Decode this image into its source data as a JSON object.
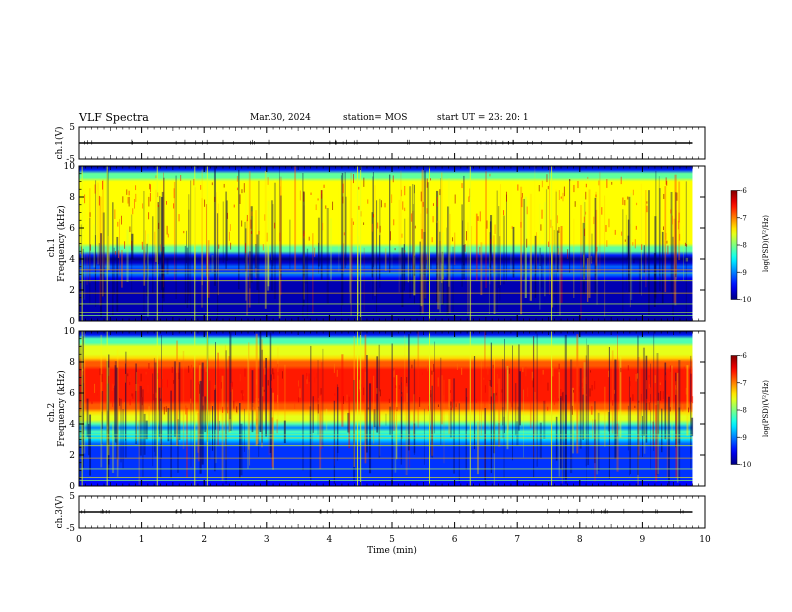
{
  "header": {
    "title": "VLF Spectra",
    "date": "Mar.30, 2024",
    "station": "station= MOS",
    "start": "start UT =   23: 20: 1"
  },
  "chart_data": [
    {
      "type": "line",
      "panel": "ch1-waveform",
      "ylabel": "ch.1(V)",
      "ylim": [
        -5,
        5
      ],
      "yticks": [
        "5",
        "-5"
      ],
      "series": [
        {
          "x": [
            0,
            9.8
          ],
          "y": [
            0,
            0
          ]
        }
      ]
    },
    {
      "type": "heatmap",
      "panel": "ch1-spectrogram",
      "ylabel": "ch.1\nFrequency (kHz)",
      "ylabel_lines": [
        "ch.1",
        "Frequency (kHz)"
      ],
      "ylim": [
        0,
        10
      ],
      "yticks": [
        "0",
        "2",
        "4",
        "6",
        "8",
        "10"
      ],
      "xlim": [
        0,
        9.8
      ],
      "bands": [
        {
          "f_lo": 4.5,
          "f_hi": 9.5,
          "level": -7.5
        },
        {
          "f_lo": 3.0,
          "f_hi": 3.5,
          "level": -8.8
        },
        {
          "f_lo": 0.0,
          "f_hi": 3.0,
          "level": -9.8
        }
      ],
      "colorbar": {
        "label": "log(PSD)(V²/Hz)",
        "range": [
          -10,
          -6
        ],
        "ticks": [
          "-6",
          "-7",
          "-8",
          "-9",
          "-10"
        ]
      }
    },
    {
      "type": "heatmap",
      "panel": "ch2-spectrogram",
      "ylabel": "ch.2\nFrequency (kHz)",
      "ylabel_lines": [
        "ch.2",
        "Frequency (kHz)"
      ],
      "ylim": [
        0,
        10
      ],
      "yticks": [
        "0",
        "2",
        "4",
        "6",
        "8",
        "10"
      ],
      "xlim": [
        0,
        9.8
      ],
      "bands": [
        {
          "f_lo": 5.0,
          "f_hi": 8.0,
          "level": -6.6
        },
        {
          "f_lo": 3.8,
          "f_hi": 9.5,
          "level": -7.6
        },
        {
          "f_lo": 3.0,
          "f_hi": 3.6,
          "level": -8.4
        },
        {
          "f_lo": 0.0,
          "f_hi": 3.0,
          "level": -9.3
        }
      ],
      "colorbar": {
        "label": "log(PSD)(V²/Hz)",
        "range": [
          -10,
          -6
        ],
        "ticks": [
          "-6",
          "-7",
          "-8",
          "-9",
          "-10"
        ]
      }
    },
    {
      "type": "line",
      "panel": "ch3-waveform",
      "ylabel": "ch.3(V)",
      "ylim": [
        -5,
        5
      ],
      "yticks": [
        "5",
        "-5"
      ],
      "series": [
        {
          "x": [
            0,
            9.8
          ],
          "y": [
            0,
            0
          ]
        }
      ]
    }
  ],
  "xaxis": {
    "label": "Time (min)",
    "lim": [
      0,
      10
    ],
    "ticks": [
      "0",
      "1",
      "2",
      "3",
      "4",
      "5",
      "6",
      "7",
      "8",
      "9",
      "10"
    ]
  }
}
